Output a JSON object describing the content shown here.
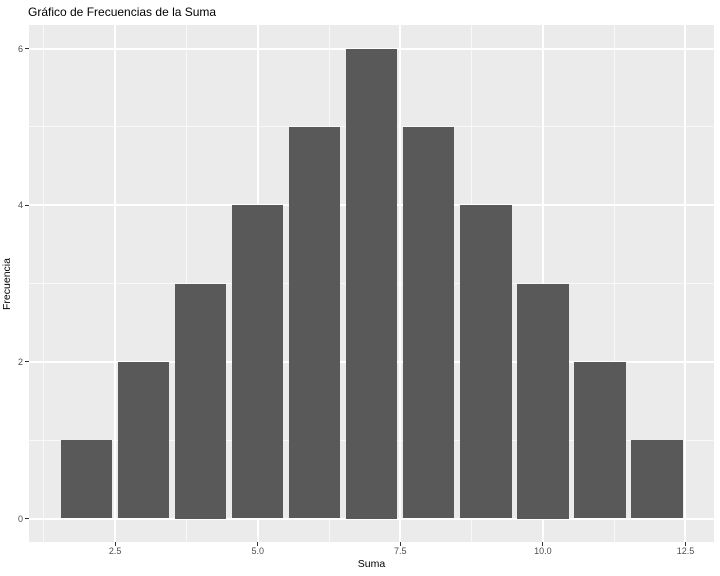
{
  "chart_data": {
    "type": "bar",
    "title": "Gráfico de Frecuencias de la Suma",
    "xlabel": "Suma",
    "ylabel": "Frecuencia",
    "x": [
      2,
      3,
      4,
      5,
      6,
      7,
      8,
      9,
      10,
      11,
      12
    ],
    "values": [
      1,
      2,
      3,
      4,
      5,
      6,
      5,
      4,
      3,
      2,
      1
    ],
    "bar_width": 0.9,
    "xlim": [
      0.99,
      13.0
    ],
    "ylim": [
      -0.3,
      6.3
    ],
    "x_ticks": {
      "values": [
        2.5,
        5.0,
        7.5,
        10.0,
        12.5
      ],
      "labels": [
        "2.5",
        "5.0",
        "7.5",
        "10.0",
        "12.5"
      ]
    },
    "y_ticks": {
      "values": [
        0,
        2,
        4,
        6
      ],
      "labels": [
        "0",
        "2",
        "4",
        "6"
      ]
    },
    "x_minor_gridlines": [
      1.25,
      3.75,
      6.25,
      8.75,
      11.25
    ],
    "y_minor_gridlines": [
      1,
      3,
      5
    ],
    "grid_on": true,
    "legend": "none",
    "colors": {
      "bar_fill": "#595959",
      "panel_background": "#EBEBEB",
      "gridline": "#FFFFFF",
      "tick_mark": "#333333",
      "tick_label": "#4D4D4D",
      "text": "#000000",
      "figure_background": "#FFFFFF"
    }
  }
}
